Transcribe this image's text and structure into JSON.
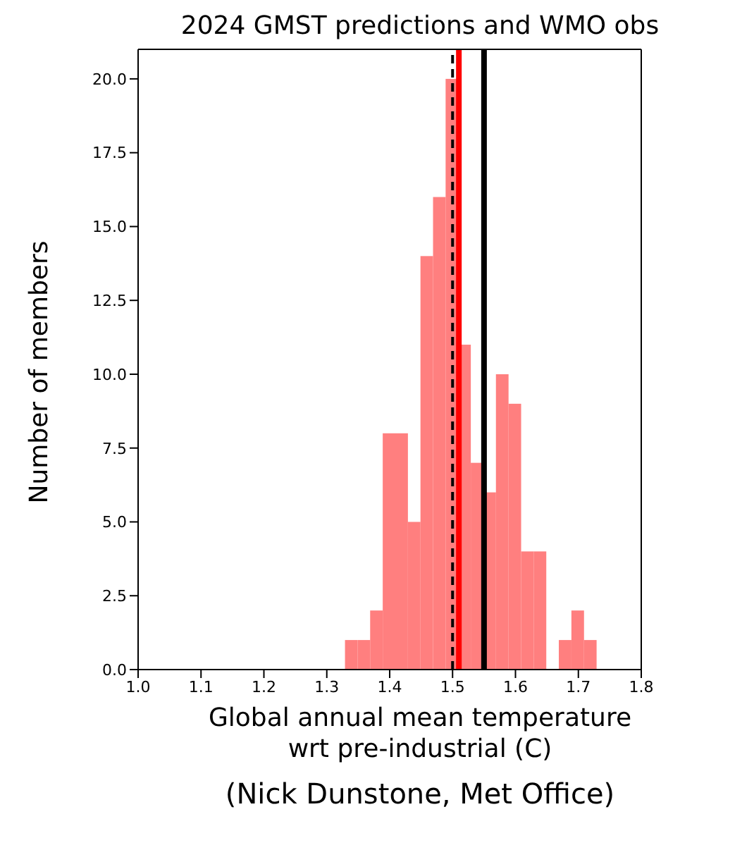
{
  "chart_data": {
    "type": "histogram",
    "title": "2024 GMST predictions and WMO obs",
    "xlabel": "Global annual mean temperature\nwrt pre-industrial (C)",
    "ylabel": "Number of members",
    "bins": [
      1.33,
      1.35,
      1.37,
      1.39,
      1.41,
      1.43,
      1.45,
      1.47,
      1.49,
      1.51,
      1.53,
      1.55,
      1.57,
      1.59,
      1.61,
      1.63,
      1.65,
      1.67,
      1.69,
      1.71,
      1.73
    ],
    "values": [
      1,
      1,
      2,
      8,
      8,
      5,
      14,
      16,
      20,
      11,
      7,
      6,
      10,
      9,
      4,
      4,
      0,
      1,
      2,
      1
    ],
    "color": "#ff7f7f",
    "xlim": [
      1.0,
      1.8
    ],
    "xticks": [
      {
        "value": 1.0,
        "label": "1.0"
      },
      {
        "value": 1.1,
        "label": "1.1"
      },
      {
        "value": 1.2,
        "label": "1.2"
      },
      {
        "value": 1.3,
        "label": "1.3"
      },
      {
        "value": 1.4,
        "label": "1.4"
      },
      {
        "value": 1.5,
        "label": "1.5"
      },
      {
        "value": 1.6,
        "label": "1.6"
      },
      {
        "value": 1.7,
        "label": "1.7"
      },
      {
        "value": 1.8,
        "label": "1.8"
      }
    ],
    "ylim": [
      0,
      21
    ],
    "yticks": [
      {
        "value": 0,
        "label": "0.0"
      },
      {
        "value": 2.5,
        "label": "2.5"
      },
      {
        "value": 5,
        "label": "5.0"
      },
      {
        "value": 7.5,
        "label": "7.5"
      },
      {
        "value": 10,
        "label": "10.0"
      },
      {
        "value": 12.5,
        "label": "12.5"
      },
      {
        "value": 15,
        "label": "15.0"
      },
      {
        "value": 17.5,
        "label": "17.5"
      },
      {
        "value": 20,
        "label": "20.0"
      }
    ],
    "ref_lines": [
      {
        "axis": "x",
        "value": 1.5,
        "color": "#000000",
        "line_style": "dashed"
      },
      {
        "axis": "x",
        "value": 1.51,
        "color": "#ff0000",
        "line_style": "solid"
      },
      {
        "axis": "x",
        "value": 1.55,
        "color": "#000000",
        "line_style": "solid"
      }
    ],
    "annotations": [
      "(Nick Dunstone, Met Office)"
    ]
  }
}
